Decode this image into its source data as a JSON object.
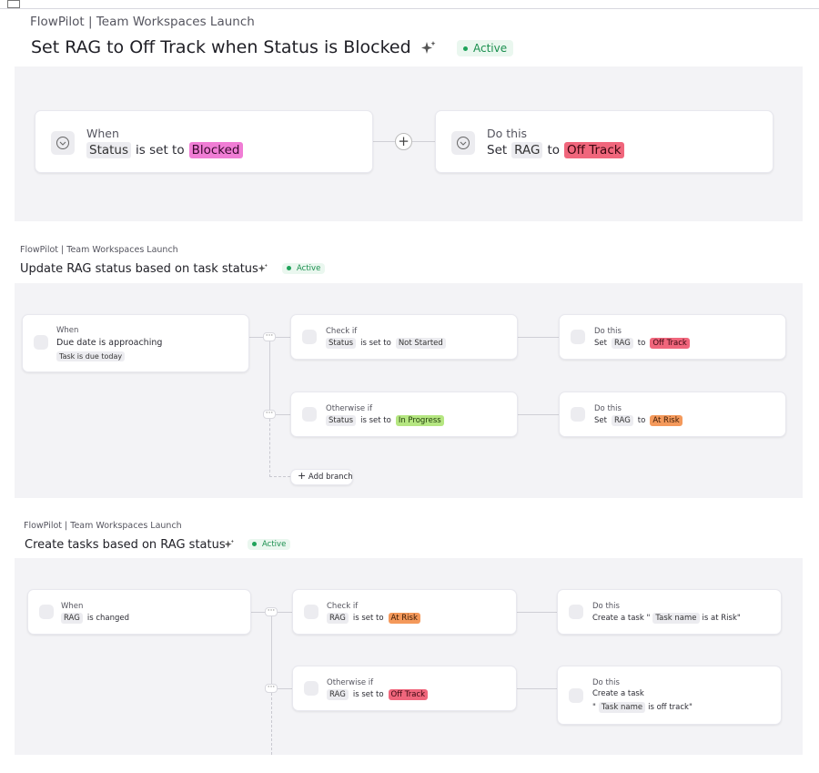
{
  "rules": [
    {
      "breadcrumb": "FlowPilot | Team Workspaces Launch",
      "title": "Set RAG to Off Track when Status is Blocked",
      "status": "Active",
      "when": {
        "label": "When",
        "field": "Status",
        "op": "is set to",
        "value": "Blocked"
      },
      "action": {
        "label": "Do this",
        "verb": "Set",
        "field": "RAG",
        "to": "to",
        "value": "Off Track"
      }
    },
    {
      "breadcrumb": "FlowPilot | Team Workspaces Launch",
      "title": "Update RAG status based on task status",
      "status": "Active",
      "when": {
        "label": "When",
        "text": "Due date is approaching",
        "sub": "Task is due today"
      },
      "branches": [
        {
          "label": "Check if",
          "field": "Status",
          "op": "is set to",
          "value": "Not Started",
          "action": {
            "label": "Do this",
            "verb": "Set",
            "field": "RAG",
            "to": "to",
            "value": "Off Track"
          }
        },
        {
          "label": "Otherwise if",
          "field": "Status",
          "op": "is set to",
          "value": "In Progress",
          "action": {
            "label": "Do this",
            "verb": "Set",
            "field": "RAG",
            "to": "to",
            "value": "At Risk"
          }
        }
      ],
      "add_branch": "Add branch"
    },
    {
      "breadcrumb": "FlowPilot | Team Workspaces Launch",
      "title": "Create tasks based on RAG status",
      "status": "Active",
      "when": {
        "label": "When",
        "field": "RAG",
        "op": "is changed"
      },
      "branches": [
        {
          "label": "Check if",
          "field": "RAG",
          "op": "is set to",
          "value": "At Risk",
          "action": {
            "label": "Do this",
            "prefix": "Create a task \"",
            "chip": "Task name",
            "suffix": "is at Risk\""
          }
        },
        {
          "label": "Otherwise if",
          "field": "RAG",
          "op": "is set to",
          "value": "Off Track",
          "action": {
            "label": "Do this",
            "line1": "Create a task",
            "prefix": "\"",
            "chip": "Task name",
            "suffix": "is off track\""
          }
        }
      ]
    }
  ]
}
